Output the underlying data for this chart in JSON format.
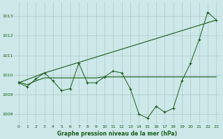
{
  "title": "Graphe pression niveau de la mer (hPa)",
  "bg_color": "#cce8e8",
  "grid_color": "#b0c8c8",
  "line_color": "#1a5c1a",
  "xlim": [
    -0.5,
    23.5
  ],
  "ylim": [
    1007.5,
    1013.7
  ],
  "xticks": [
    0,
    1,
    2,
    3,
    4,
    5,
    6,
    7,
    8,
    9,
    10,
    11,
    12,
    13,
    14,
    15,
    16,
    17,
    18,
    19,
    20,
    21,
    22,
    23
  ],
  "yticks": [
    1008,
    1009,
    1010,
    1011,
    1012,
    1013
  ],
  "series1_x": [
    0,
    1,
    2,
    3,
    4,
    5,
    6,
    7,
    8,
    9,
    10,
    11,
    12,
    13,
    14,
    15,
    16,
    17,
    18,
    19,
    20,
    21,
    22,
    23
  ],
  "series1_y": [
    1009.6,
    1009.4,
    1009.8,
    1010.1,
    1009.7,
    1009.2,
    1009.3,
    1010.6,
    1009.6,
    1009.6,
    1009.9,
    1010.2,
    1010.1,
    1009.3,
    1008.0,
    1007.8,
    1008.4,
    1008.1,
    1008.3,
    1009.7,
    1010.6,
    1011.8,
    1013.2,
    1012.8
  ],
  "series2_x": [
    0,
    3,
    23
  ],
  "series2_y": [
    1009.6,
    1010.1,
    1012.8
  ],
  "series3_x": [
    0,
    1,
    2,
    3,
    4,
    5,
    6,
    7,
    8,
    9,
    10,
    11,
    12,
    13,
    14,
    15,
    16,
    17,
    18,
    19,
    20,
    21,
    22,
    23
  ],
  "series3_y": [
    1009.65,
    1009.5,
    1009.7,
    1009.85,
    1009.85,
    1009.85,
    1009.85,
    1009.85,
    1009.85,
    1009.85,
    1009.9,
    1009.9,
    1009.9,
    1009.9,
    1009.9,
    1009.9,
    1009.9,
    1009.9,
    1009.9,
    1009.9,
    1009.9,
    1009.9,
    1009.9,
    1009.9
  ]
}
